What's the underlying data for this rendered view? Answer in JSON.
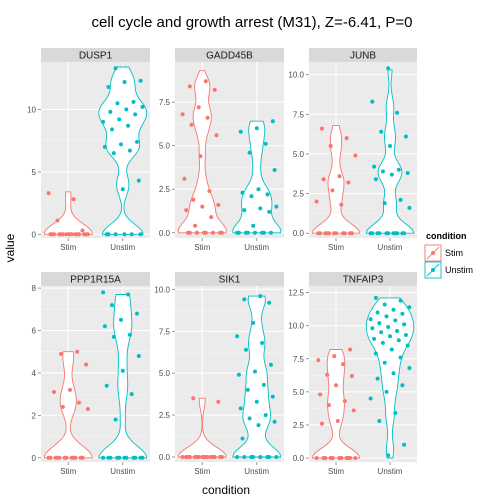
{
  "chart_data": {
    "type": "violin",
    "title": "cell cycle and growth arrest (M31), Z=-6.41, P=0",
    "xlabel": "condition",
    "ylabel": "value",
    "categories": [
      "Stim",
      "Unstim"
    ],
    "legend": {
      "title": "condition",
      "position": "right",
      "entries": [
        {
          "label": "Stim",
          "color": "#F8766D"
        },
        {
          "label": "Unstim",
          "color": "#00BFC4"
        }
      ]
    },
    "colors": {
      "Stim": "#F8766D",
      "Unstim": "#00BFC4",
      "panel": "#EBEBEB",
      "strip": "#D9D9D9",
      "grid": "#FFFFFF"
    },
    "grid": true,
    "panels": [
      {
        "gene": "DUSP1",
        "ylim": [
          -0.3,
          13.8
        ],
        "yticks": [
          0,
          5,
          10
        ],
        "series": [
          {
            "name": "Stim",
            "max": 3.4,
            "points": [
              3.3,
              2.8,
              1.1,
              0.3,
              0,
              0,
              0,
              0,
              0,
              0,
              0,
              0,
              0,
              0,
              0,
              0,
              0,
              0,
              0,
              0
            ]
          },
          {
            "name": "Unstim",
            "max": 13.4,
            "points": [
              13.3,
              12.3,
              12.2,
              11.8,
              10.6,
              10.5,
              10.2,
              10.0,
              9.8,
              9.6,
              9.2,
              9.0,
              8.7,
              8.4,
              7.4,
              7.2,
              7.0,
              6.7,
              6.5,
              4.3,
              3.6,
              0,
              0,
              0,
              0,
              0,
              0
            ]
          }
        ]
      },
      {
        "gene": "GADD45B",
        "ylim": [
          -0.3,
          9.8
        ],
        "yticks": [
          0.0,
          2.5,
          5.0,
          7.5
        ],
        "series": [
          {
            "name": "Stim",
            "max": 9.3,
            "points": [
              8.7,
              8.4,
              8.2,
              7.2,
              6.8,
              6.6,
              6.2,
              5.6,
              4.4,
              3.1,
              2.4,
              1.9,
              1.6,
              1.5,
              1.3,
              0.9,
              0.4,
              0,
              0,
              0,
              0,
              0,
              0,
              0,
              0
            ]
          },
          {
            "name": "Unstim",
            "max": 6.4,
            "points": [
              6.4,
              6.0,
              5.8,
              5.1,
              4.6,
              3.6,
              2.5,
              2.3,
              2.2,
              2.1,
              1.5,
              1.4,
              1.3,
              1.2,
              0.4,
              0,
              0,
              0,
              0,
              0,
              0,
              0,
              0
            ]
          }
        ]
      },
      {
        "gene": "JUNB",
        "ylim": [
          -0.3,
          10.8
        ],
        "yticks": [
          0.0,
          2.5,
          5.0,
          7.5,
          10.0
        ],
        "series": [
          {
            "name": "Stim",
            "max": 6.8,
            "points": [
              6.6,
              6.0,
              5.5,
              4.9,
              3.6,
              3.4,
              3.2,
              2.7,
              2.0,
              1.8,
              0,
              0,
              0,
              0,
              0,
              0,
              0,
              0,
              0,
              0,
              0
            ]
          },
          {
            "name": "Unstim",
            "max": 10.3,
            "points": [
              10.4,
              8.3,
              7.6,
              6.4,
              6.1,
              5.5,
              4.2,
              4.0,
              3.9,
              3.8,
              3.7,
              3.4,
              2.1,
              1.9,
              1.6,
              0,
              0,
              0,
              0,
              0,
              0,
              0,
              0,
              0,
              0,
              0
            ]
          }
        ]
      },
      {
        "gene": "PPP1R15A",
        "ylim": [
          -0.2,
          8.1
        ],
        "yticks": [
          0,
          2,
          4,
          6,
          8
        ],
        "series": [
          {
            "name": "Stim",
            "max": 5.0,
            "points": [
              5.0,
              4.9,
              4.4,
              3.2,
              3.1,
              2.6,
              2.4,
              2.3,
              0,
              0,
              0,
              0,
              0,
              0,
              0,
              0,
              0,
              0,
              0,
              0
            ]
          },
          {
            "name": "Unstim",
            "max": 7.7,
            "points": [
              7.8,
              7.7,
              7.2,
              6.8,
              6.5,
              6.2,
              5.8,
              5.7,
              4.8,
              4.1,
              3.4,
              3.0,
              1.8,
              0,
              0,
              0,
              0,
              0,
              0,
              0,
              0,
              0,
              0,
              0
            ]
          }
        ]
      },
      {
        "gene": "SIK1",
        "ylim": [
          -0.3,
          10.2
        ],
        "yticks": [
          0.0,
          2.5,
          5.0,
          7.5,
          10.0
        ],
        "series": [
          {
            "name": "Stim",
            "max": 3.5,
            "points": [
              3.5,
              3.3,
              0,
              0,
              0,
              0,
              0,
              0,
              0,
              0,
              0,
              0,
              0,
              0,
              0,
              0,
              0,
              0
            ]
          },
          {
            "name": "Unstim",
            "max": 9.6,
            "points": [
              9.6,
              9.4,
              9.2,
              8.0,
              7.2,
              6.8,
              6.4,
              5.5,
              5.1,
              4.9,
              4.3,
              4.0,
              3.6,
              3.3,
              2.9,
              2.5,
              2.3,
              2.1,
              1.9,
              1.1,
              0,
              0,
              0,
              0,
              0,
              0,
              0,
              0
            ]
          }
        ]
      },
      {
        "gene": "TNFAIP3",
        "ylim": [
          -0.3,
          13.0
        ],
        "yticks": [
          0.0,
          2.5,
          5.0,
          7.5,
          10.0,
          12.5
        ],
        "series": [
          {
            "name": "Stim",
            "max": 8.2,
            "points": [
              8.2,
              7.7,
              7.4,
              7.1,
              6.3,
              6.2,
              5.5,
              4.8,
              4.3,
              4.0,
              3.6,
              2.8,
              2.6,
              0,
              0,
              0,
              0,
              0,
              0,
              0,
              0,
              0,
              0,
              0
            ]
          },
          {
            "name": "Unstim",
            "max": 12.1,
            "points": [
              12.1,
              11.9,
              11.6,
              11.4,
              11.2,
              11.0,
              10.9,
              10.7,
              10.5,
              10.4,
              10.2,
              10.1,
              9.9,
              9.8,
              9.6,
              9.5,
              9.3,
              9.2,
              9.0,
              8.9,
              8.7,
              8.5,
              8.2,
              7.9,
              7.6,
              7.2,
              6.8,
              6.4,
              6.0,
              5.5,
              5.0,
              4.5,
              3.4,
              2.8,
              1.0,
              0.2
            ]
          }
        ]
      }
    ]
  }
}
